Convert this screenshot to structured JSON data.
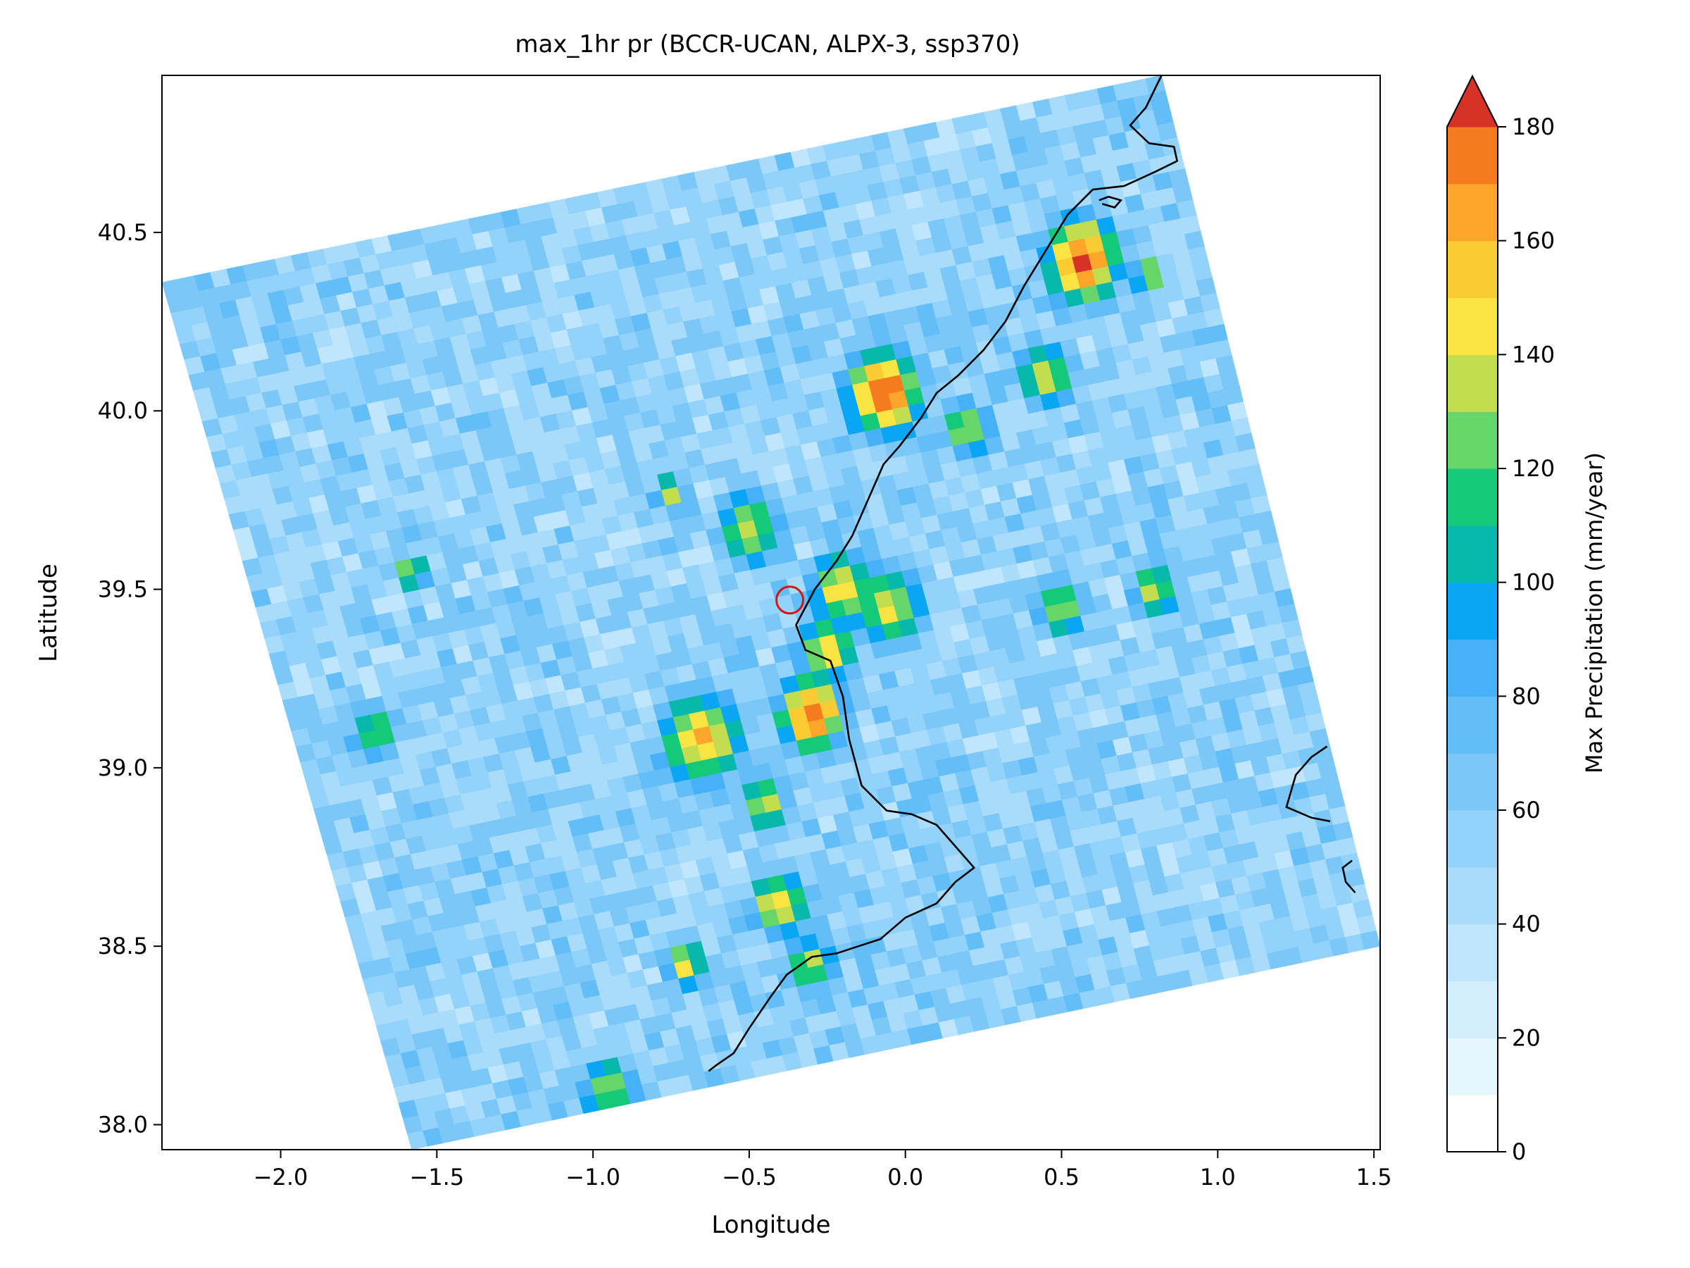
{
  "chart_data": {
    "type": "heatmap",
    "title": "max_1hr pr (BCCR-UCAN, ALPX-3, ssp370)",
    "xlabel": "Longitude",
    "ylabel": "Latitude",
    "xlim": [
      -2.38,
      1.52
    ],
    "ylim": [
      37.93,
      40.94
    ],
    "xticks": [
      -2.0,
      -1.5,
      -1.0,
      -0.5,
      0.0,
      0.5,
      1.0,
      1.5
    ],
    "xtick_labels": [
      "−2.0",
      "−1.5",
      "−1.0",
      "−0.5",
      "0.0",
      "0.5",
      "1.0",
      "1.5"
    ],
    "yticks": [
      38.0,
      38.5,
      39.0,
      39.5,
      40.0,
      40.5
    ],
    "ytick_labels": [
      "38.0",
      "38.5",
      "39.0",
      "39.5",
      "40.0",
      "40.5"
    ],
    "grid": false,
    "domain_corners": [
      [
        -2.38,
        40.36
      ],
      [
        0.82,
        40.94
      ],
      [
        1.52,
        38.5
      ],
      [
        -1.58,
        37.93
      ]
    ],
    "colorbar": {
      "label": "Max Precipitation (mm/year)",
      "min": 0,
      "max": 180,
      "extend": "max",
      "ticks": [
        0,
        20,
        40,
        60,
        80,
        100,
        120,
        140,
        160,
        180
      ],
      "tick_labels": [
        "0",
        "20",
        "40",
        "60",
        "80",
        "100",
        "120",
        "140",
        "160",
        "180"
      ],
      "levels": [
        {
          "from": 0,
          "to": 10,
          "color": "#ffffff"
        },
        {
          "from": 10,
          "to": 20,
          "color": "#e6f6fe"
        },
        {
          "from": 20,
          "to": 30,
          "color": "#d3effd"
        },
        {
          "from": 30,
          "to": 40,
          "color": "#bfe6fc"
        },
        {
          "from": 40,
          "to": 50,
          "color": "#a9dcfb"
        },
        {
          "from": 50,
          "to": 60,
          "color": "#93d2fa"
        },
        {
          "from": 60,
          "to": 70,
          "color": "#7bc7f8"
        },
        {
          "from": 70,
          "to": 80,
          "color": "#63bdf7"
        },
        {
          "from": 80,
          "to": 90,
          "color": "#46b1f6"
        },
        {
          "from": 90,
          "to": 100,
          "color": "#0aa6f4"
        },
        {
          "from": 100,
          "to": 110,
          "color": "#08b8ab"
        },
        {
          "from": 110,
          "to": 120,
          "color": "#15c97a"
        },
        {
          "from": 120,
          "to": 130,
          "color": "#66d66a"
        },
        {
          "from": 130,
          "to": 140,
          "color": "#c2dd4f"
        },
        {
          "from": 140,
          "to": 150,
          "color": "#f9e442"
        },
        {
          "from": 150,
          "to": 160,
          "color": "#fbcb33"
        },
        {
          "from": 160,
          "to": 170,
          "color": "#fba52a"
        },
        {
          "from": 170,
          "to": 180,
          "color": "#f57b20"
        },
        {
          "from": 180,
          "to": null,
          "color": "#d73226"
        }
      ]
    },
    "background_level": 55,
    "hotspots": [
      {
        "lon": -0.07,
        "lat": 40.05,
        "peak": 185,
        "radius": 0.09
      },
      {
        "lon": 0.57,
        "lat": 40.42,
        "peak": 185,
        "radius": 0.09
      },
      {
        "lon": -0.3,
        "lat": 39.15,
        "peak": 182,
        "radius": 0.08
      },
      {
        "lon": -0.65,
        "lat": 39.08,
        "peak": 160,
        "radius": 0.1
      },
      {
        "lon": -0.25,
        "lat": 39.33,
        "peak": 150,
        "radius": 0.07
      },
      {
        "lon": -0.2,
        "lat": 39.5,
        "peak": 145,
        "radius": 0.08
      },
      {
        "lon": -0.05,
        "lat": 39.45,
        "peak": 140,
        "radius": 0.09
      },
      {
        "lon": -0.5,
        "lat": 39.67,
        "peak": 140,
        "radius": 0.08
      },
      {
        "lon": -0.4,
        "lat": 38.62,
        "peak": 150,
        "radius": 0.07
      },
      {
        "lon": 0.45,
        "lat": 40.1,
        "peak": 145,
        "radius": 0.07
      },
      {
        "lon": 0.2,
        "lat": 39.95,
        "peak": 140,
        "radius": 0.06
      },
      {
        "lon": 0.5,
        "lat": 39.45,
        "peak": 140,
        "radius": 0.06
      },
      {
        "lon": 0.8,
        "lat": 39.5,
        "peak": 135,
        "radius": 0.06
      },
      {
        "lon": -0.45,
        "lat": 38.9,
        "peak": 140,
        "radius": 0.06
      },
      {
        "lon": -0.7,
        "lat": 38.45,
        "peak": 145,
        "radius": 0.05
      },
      {
        "lon": -0.3,
        "lat": 38.45,
        "peak": 140,
        "radius": 0.06
      },
      {
        "lon": -0.75,
        "lat": 39.77,
        "peak": 140,
        "radius": 0.04
      },
      {
        "lon": -1.58,
        "lat": 39.55,
        "peak": 140,
        "radius": 0.04
      },
      {
        "lon": -1.7,
        "lat": 39.1,
        "peak": 125,
        "radius": 0.06
      },
      {
        "lon": 0.78,
        "lat": 40.38,
        "peak": 145,
        "radius": 0.04
      },
      {
        "lon": -0.95,
        "lat": 38.1,
        "peak": 135,
        "radius": 0.07
      }
    ],
    "coastline": [
      [
        0.82,
        40.94
      ],
      [
        0.77,
        40.85
      ],
      [
        0.72,
        40.8
      ],
      [
        0.78,
        40.75
      ],
      [
        0.86,
        40.74
      ],
      [
        0.87,
        40.7
      ],
      [
        0.8,
        40.67
      ],
      [
        0.7,
        40.63
      ],
      [
        0.6,
        40.62
      ],
      [
        0.52,
        40.55
      ],
      [
        0.45,
        40.45
      ],
      [
        0.38,
        40.35
      ],
      [
        0.32,
        40.25
      ],
      [
        0.25,
        40.17
      ],
      [
        0.17,
        40.1
      ],
      [
        0.1,
        40.05
      ],
      [
        0.05,
        39.98
      ],
      [
        -0.02,
        39.9
      ],
      [
        -0.07,
        39.85
      ],
      [
        -0.12,
        39.75
      ],
      [
        -0.17,
        39.65
      ],
      [
        -0.22,
        39.58
      ],
      [
        -0.29,
        39.5
      ],
      [
        -0.35,
        39.4
      ],
      [
        -0.32,
        39.33
      ],
      [
        -0.24,
        39.3
      ],
      [
        -0.2,
        39.2
      ],
      [
        -0.18,
        39.08
      ],
      [
        -0.14,
        38.95
      ],
      [
        -0.06,
        38.88
      ],
      [
        0.02,
        38.87
      ],
      [
        0.1,
        38.84
      ],
      [
        0.18,
        38.76
      ],
      [
        0.22,
        38.72
      ],
      [
        0.16,
        38.68
      ],
      [
        0.1,
        38.62
      ],
      [
        0.0,
        38.58
      ],
      [
        -0.08,
        38.52
      ],
      [
        -0.15,
        38.5
      ],
      [
        -0.22,
        38.48
      ],
      [
        -0.3,
        38.47
      ],
      [
        -0.38,
        38.42
      ],
      [
        -0.43,
        38.36
      ],
      [
        -0.5,
        38.27
      ],
      [
        -0.55,
        38.2
      ],
      [
        -0.6,
        38.17
      ],
      [
        -0.63,
        38.15
      ]
    ],
    "coastline_islands": [
      [
        [
          1.35,
          39.06
        ],
        [
          1.3,
          39.03
        ],
        [
          1.25,
          38.98
        ],
        [
          1.22,
          38.89
        ],
        [
          1.3,
          38.86
        ],
        [
          1.36,
          38.85
        ]
      ],
      [
        [
          1.43,
          38.74
        ],
        [
          1.4,
          38.72
        ],
        [
          1.41,
          38.68
        ],
        [
          1.44,
          38.65
        ]
      ],
      [
        [
          0.63,
          40.58
        ],
        [
          0.67,
          40.57
        ],
        [
          0.69,
          40.59
        ],
        [
          0.65,
          40.6
        ],
        [
          0.62,
          40.59
        ]
      ]
    ],
    "marker": {
      "lon": -0.37,
      "lat": 39.47,
      "shape": "circle",
      "color": "#dd1111"
    }
  }
}
